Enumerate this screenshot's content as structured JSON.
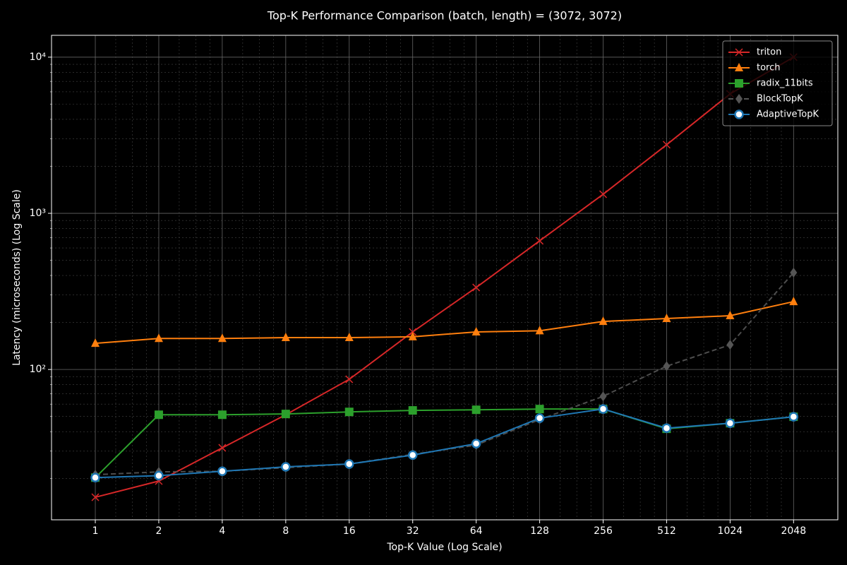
{
  "chart_data": {
    "type": "line",
    "title": "Top-K Performance Comparison (batch, length) = (3072, 3072)",
    "x_label": "Top-K Value (Log Scale)",
    "y_label": "Latency (microseconds) (Log Scale)",
    "x": [
      1,
      2,
      4,
      8,
      16,
      32,
      64,
      128,
      256,
      512,
      1024,
      2048
    ],
    "xscale": "log",
    "yscale": "log",
    "xlim": [
      0.62,
      3320
    ],
    "ylim": [
      10.9,
      13800
    ],
    "xticks": [
      1,
      2,
      4,
      8,
      16,
      32,
      64,
      128,
      256,
      512,
      1024,
      2048
    ],
    "yticks": [
      {
        "value": 100,
        "label": "10²"
      },
      {
        "value": 1000,
        "label": "10³"
      },
      {
        "value": 10000,
        "label": "10⁴"
      }
    ],
    "grid": true,
    "minor_grid": true,
    "legend": "upper right",
    "series": [
      {
        "name": "triton",
        "color": "#d62728",
        "marker": "x",
        "dash": false,
        "values": [
          15.2,
          19.3,
          31.5,
          51.3,
          86.5,
          174,
          335,
          667,
          1325,
          2750,
          5820,
          10000
        ]
      },
      {
        "name": "torch",
        "color": "#ff7f0e",
        "marker": "triangle",
        "dash": false,
        "values": [
          147,
          158,
          158,
          160,
          160,
          162,
          174,
          177,
          203,
          212,
          221,
          272
        ]
      },
      {
        "name": "radix_11bits",
        "color": "#2ca02c",
        "marker": "square",
        "dash": false,
        "values": [
          20.3,
          51.3,
          51.3,
          51.9,
          53.5,
          54.7,
          55.2,
          55.8,
          55.8,
          41.7,
          45.3,
          49.8
        ]
      },
      {
        "name": "BlockTopK",
        "color": "#555555",
        "marker": "diamond",
        "dash": true,
        "values": [
          21.2,
          22.1,
          22.3,
          23.5,
          24.8,
          28.6,
          32.8,
          47.8,
          67.3,
          105,
          144,
          417
        ]
      },
      {
        "name": "AdaptiveTopK",
        "color": "#1f77b4",
        "marker": "circle",
        "dash": false,
        "values": [
          20.3,
          20.9,
          22.3,
          23.8,
          24.8,
          28.3,
          33.5,
          48.8,
          55.8,
          42.1,
          45.3,
          49.8
        ]
      }
    ]
  }
}
